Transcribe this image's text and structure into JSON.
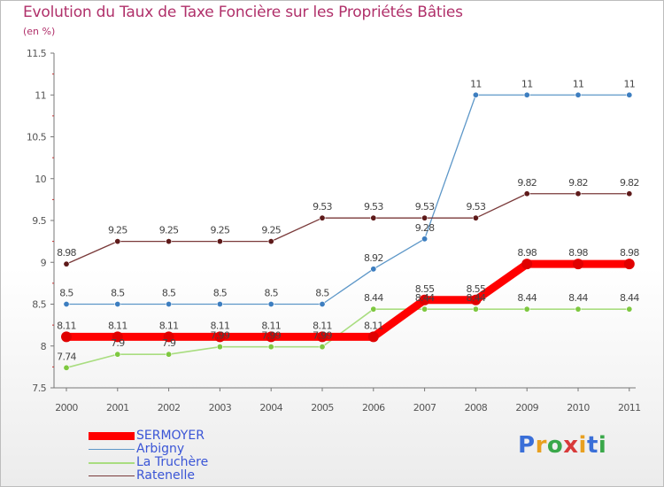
{
  "title": "Evolution du Taux de Taxe Foncière sur les Propriétés Bâties",
  "unit_label": "(en %)",
  "logo": {
    "text": "Proxiti",
    "colors": [
      "#3a6fd8",
      "#e8a020",
      "#3aa84a",
      "#d83a3a",
      "#e8a020",
      "#3a6fd8",
      "#3aa84a"
    ]
  },
  "chart_data": {
    "type": "line",
    "title": "Evolution du Taux de Taxe Foncière sur les Propriétés Bâties",
    "ylabel": "(en %)",
    "xlabel": "",
    "x": [
      "2000",
      "2001",
      "2002",
      "2003",
      "2004",
      "2005",
      "2006",
      "2007",
      "2008",
      "2009",
      "2010",
      "2011"
    ],
    "yticks": [
      "7.5",
      "8",
      "8.5",
      "9",
      "9.5",
      "10",
      "10.5",
      "11",
      "11.5"
    ],
    "ylim": [
      7.5,
      11.5
    ],
    "grid": false,
    "legend": "bottom-left",
    "series": [
      {
        "name": "SERMOYER",
        "color": "#ff0000",
        "marker": "#e00000",
        "width": 9,
        "values": [
          8.11,
          8.11,
          8.11,
          8.11,
          8.11,
          8.11,
          8.11,
          8.55,
          8.55,
          8.98,
          8.98,
          8.98
        ],
        "labels": [
          "8.11",
          "8.11",
          "8.11",
          "8.11",
          "8.11",
          "8.11",
          "8.11",
          "8.55",
          "8.55",
          "8.98",
          "8.98",
          "8.98"
        ]
      },
      {
        "name": "Arbigny",
        "color": "#5d97c8",
        "marker": "#3d7ec0",
        "width": 1.3,
        "values": [
          8.5,
          8.5,
          8.5,
          8.5,
          8.5,
          8.5,
          8.92,
          9.28,
          11,
          11,
          11,
          11
        ],
        "labels": [
          "8.5",
          "8.5",
          "8.5",
          "8.5",
          "8.5",
          "8.5",
          "8.92",
          "9.28",
          "11",
          "11",
          "11",
          "11"
        ]
      },
      {
        "name": "La Truchère",
        "color": "#a9dd80",
        "marker": "#7ec840",
        "width": 1.6,
        "values": [
          7.74,
          7.9,
          7.9,
          7.99,
          7.99,
          7.99,
          8.44,
          8.44,
          8.44,
          8.44,
          8.44,
          8.44
        ],
        "labels": [
          "7.74",
          "7.9",
          "7.9",
          "7.99",
          "7.99",
          "7.99",
          "8.44",
          "8.44",
          "8.44",
          "8.44",
          "8.44",
          "8.44"
        ]
      },
      {
        "name": "Ratenelle",
        "color": "#7a3a3a",
        "marker": "#5e1a1a",
        "width": 1.3,
        "values": [
          8.98,
          9.25,
          9.25,
          9.25,
          9.25,
          9.53,
          9.53,
          9.53,
          9.53,
          9.82,
          9.82,
          9.82
        ],
        "labels": [
          "8.98",
          "9.25",
          "9.25",
          "9.25",
          "9.25",
          "9.53",
          "9.53",
          "9.53",
          "9.53",
          "9.82",
          "9.82",
          "9.82"
        ]
      }
    ]
  }
}
